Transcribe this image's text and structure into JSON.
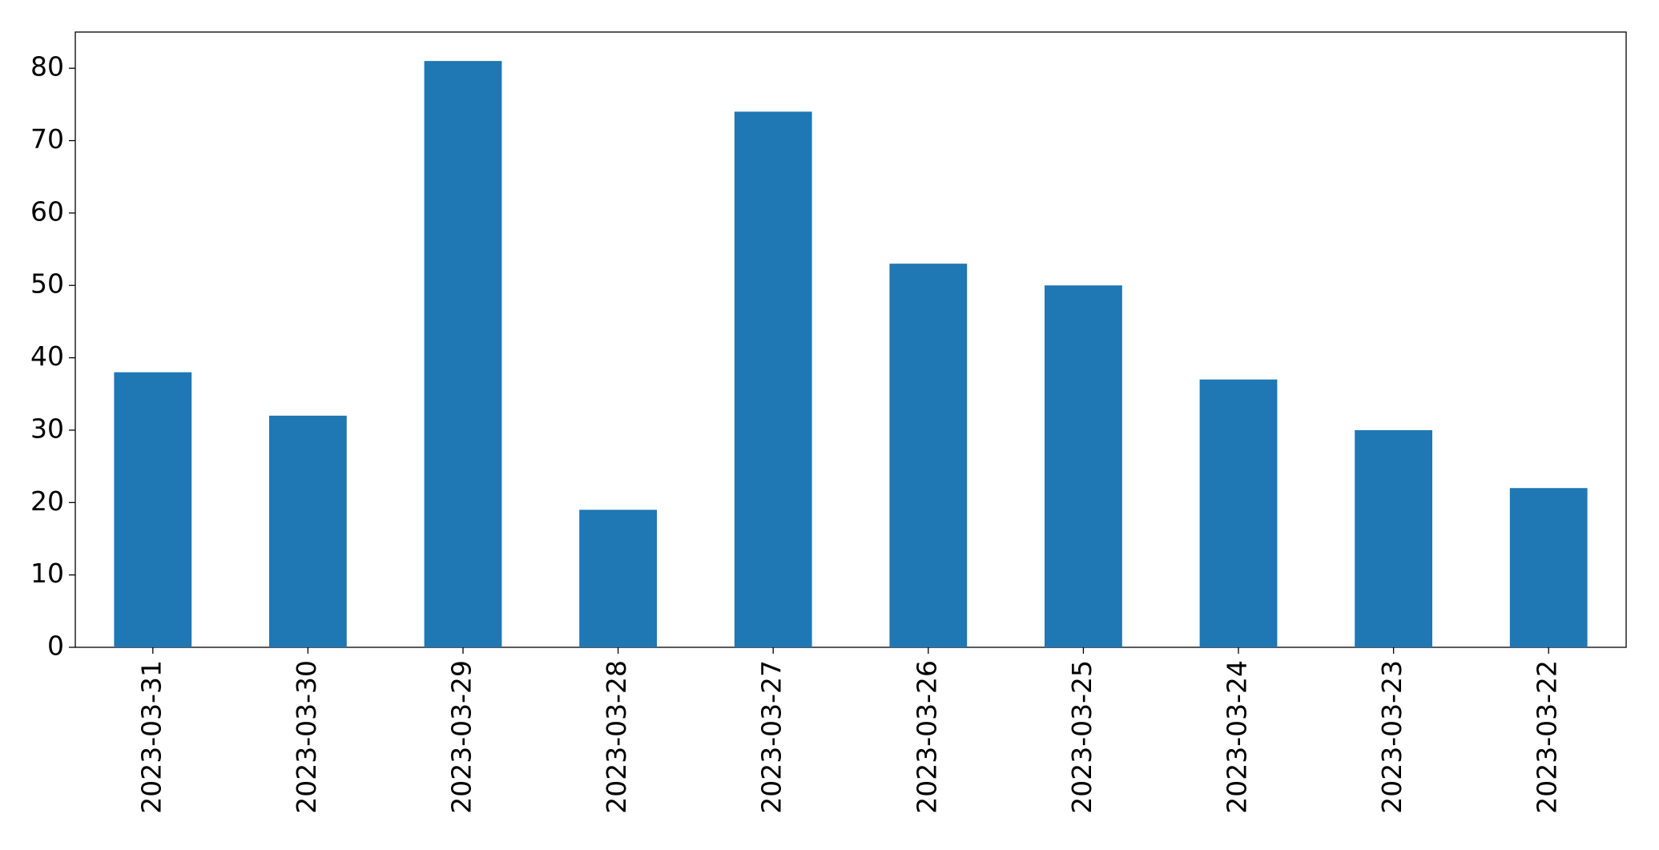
{
  "chart_data": {
    "type": "bar",
    "categories": [
      "2023-03-31",
      "2023-03-30",
      "2023-03-29",
      "2023-03-28",
      "2023-03-27",
      "2023-03-26",
      "2023-03-25",
      "2023-03-24",
      "2023-03-23",
      "2023-03-22"
    ],
    "values": [
      38,
      32,
      81,
      19,
      74,
      53,
      50,
      37,
      30,
      22
    ],
    "color": "#1f77b4",
    "ylim": [
      0,
      85
    ],
    "yticks": [
      0,
      10,
      20,
      30,
      40,
      50,
      60,
      70,
      80
    ],
    "grid": false
  }
}
